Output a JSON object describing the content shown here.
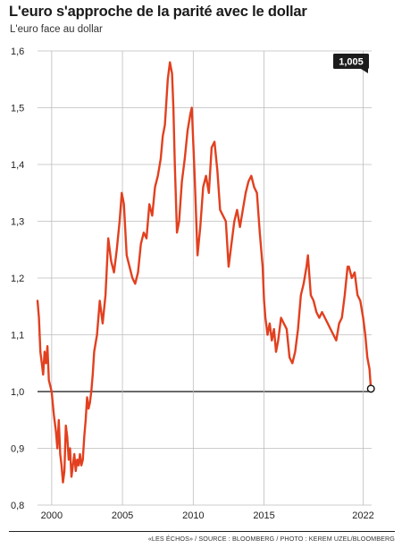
{
  "colors": {
    "line": "#e2401f",
    "grid": "#bdbdbd",
    "baseline": "#111111",
    "badge": "#1c1c1c"
  },
  "chart_data": {
    "type": "line",
    "title": "L'euro s'approche de la parité avec le dollar",
    "subtitle": "L'euro face au dollar",
    "xlabel": "",
    "ylabel": "",
    "xlim": [
      1999.0,
      2022.6
    ],
    "ylim": [
      0.8,
      1.6
    ],
    "grid": true,
    "reference_line": 1.0,
    "x_ticks": [
      2000,
      2005,
      2010,
      2015,
      2022
    ],
    "x_tick_labels": [
      "2000",
      "2005",
      "2010",
      "2015",
      "2022"
    ],
    "y_ticks": [
      0.8,
      0.9,
      1.0,
      1.1,
      1.2,
      1.3,
      1.4,
      1.5,
      1.6
    ],
    "y_tick_labels": [
      "0,8",
      "0,9",
      "1,0",
      "1,1",
      "1,2",
      "1,3",
      "1,4",
      "1,5",
      "1,6"
    ],
    "last_value_label": "1,005",
    "series": [
      {
        "x": [
          1999.0,
          1999.1,
          1999.2,
          1999.3,
          1999.4,
          1999.5,
          1999.6,
          1999.7,
          1999.8,
          1999.9,
          2000.0,
          2000.15,
          2000.3,
          2000.4,
          2000.5,
          2000.6,
          2000.7,
          2000.8,
          2000.9,
          2001.0,
          2001.1,
          2001.2,
          2001.3,
          2001.4,
          2001.5,
          2001.6,
          2001.7,
          2001.8,
          2001.9,
          2002.0,
          2002.1,
          2002.2,
          2002.3,
          2002.4,
          2002.5,
          2002.6,
          2002.7,
          2002.8,
          2002.9,
          2003.0,
          2003.2,
          2003.4,
          2003.6,
          2003.8,
          2004.0,
          2004.2,
          2004.4,
          2004.6,
          2004.8,
          2004.95,
          2005.1,
          2005.3,
          2005.5,
          2005.7,
          2005.9,
          2006.1,
          2006.3,
          2006.5,
          2006.7,
          2006.9,
          2007.1,
          2007.3,
          2007.5,
          2007.7,
          2007.85,
          2008.0,
          2008.2,
          2008.35,
          2008.5,
          2008.6,
          2008.7,
          2008.85,
          2009.0,
          2009.2,
          2009.4,
          2009.6,
          2009.8,
          2009.9,
          2010.1,
          2010.3,
          2010.5,
          2010.7,
          2010.9,
          2011.1,
          2011.3,
          2011.5,
          2011.7,
          2011.9,
          2012.1,
          2012.3,
          2012.5,
          2012.7,
          2012.9,
          2013.1,
          2013.3,
          2013.5,
          2013.7,
          2013.9,
          2014.1,
          2014.3,
          2014.5,
          2014.7,
          2014.9,
          2015.0,
          2015.1,
          2015.25,
          2015.4,
          2015.55,
          2015.7,
          2015.85,
          2016.0,
          2016.2,
          2016.4,
          2016.6,
          2016.8,
          2017.0,
          2017.2,
          2017.4,
          2017.6,
          2017.8,
          2018.0,
          2018.1,
          2018.3,
          2018.5,
          2018.7,
          2018.9,
          2019.1,
          2019.3,
          2019.5,
          2019.7,
          2019.9,
          2020.1,
          2020.3,
          2020.5,
          2020.7,
          2020.9,
          2021.0,
          2021.2,
          2021.4,
          2021.6,
          2021.8,
          2022.0,
          2022.15,
          2022.3,
          2022.45,
          2022.55
        ],
        "y": [
          1.16,
          1.13,
          1.07,
          1.05,
          1.03,
          1.07,
          1.05,
          1.08,
          1.02,
          1.01,
          1.0,
          0.96,
          0.93,
          0.9,
          0.95,
          0.89,
          0.87,
          0.84,
          0.86,
          0.94,
          0.92,
          0.88,
          0.9,
          0.85,
          0.87,
          0.89,
          0.86,
          0.88,
          0.87,
          0.89,
          0.87,
          0.88,
          0.92,
          0.95,
          0.99,
          0.97,
          0.98,
          1.0,
          1.03,
          1.07,
          1.1,
          1.16,
          1.12,
          1.17,
          1.27,
          1.23,
          1.21,
          1.25,
          1.3,
          1.35,
          1.33,
          1.24,
          1.22,
          1.2,
          1.19,
          1.21,
          1.26,
          1.28,
          1.27,
          1.33,
          1.31,
          1.36,
          1.38,
          1.41,
          1.45,
          1.47,
          1.55,
          1.58,
          1.56,
          1.5,
          1.4,
          1.28,
          1.3,
          1.37,
          1.41,
          1.46,
          1.49,
          1.5,
          1.38,
          1.24,
          1.29,
          1.36,
          1.38,
          1.35,
          1.43,
          1.44,
          1.39,
          1.32,
          1.31,
          1.3,
          1.22,
          1.26,
          1.3,
          1.32,
          1.29,
          1.32,
          1.35,
          1.37,
          1.38,
          1.36,
          1.35,
          1.28,
          1.22,
          1.16,
          1.13,
          1.1,
          1.12,
          1.09,
          1.11,
          1.07,
          1.09,
          1.13,
          1.12,
          1.11,
          1.06,
          1.05,
          1.07,
          1.11,
          1.17,
          1.19,
          1.22,
          1.24,
          1.17,
          1.16,
          1.14,
          1.13,
          1.14,
          1.13,
          1.12,
          1.11,
          1.1,
          1.09,
          1.12,
          1.13,
          1.17,
          1.22,
          1.22,
          1.2,
          1.21,
          1.17,
          1.16,
          1.13,
          1.1,
          1.06,
          1.04,
          1.005
        ]
      }
    ]
  },
  "footer": {
    "credit": "«LES ÉCHOS» / SOURCE : BLOOMBERG / PHOTO : KEREM UZEL/BLOOMBERG"
  }
}
